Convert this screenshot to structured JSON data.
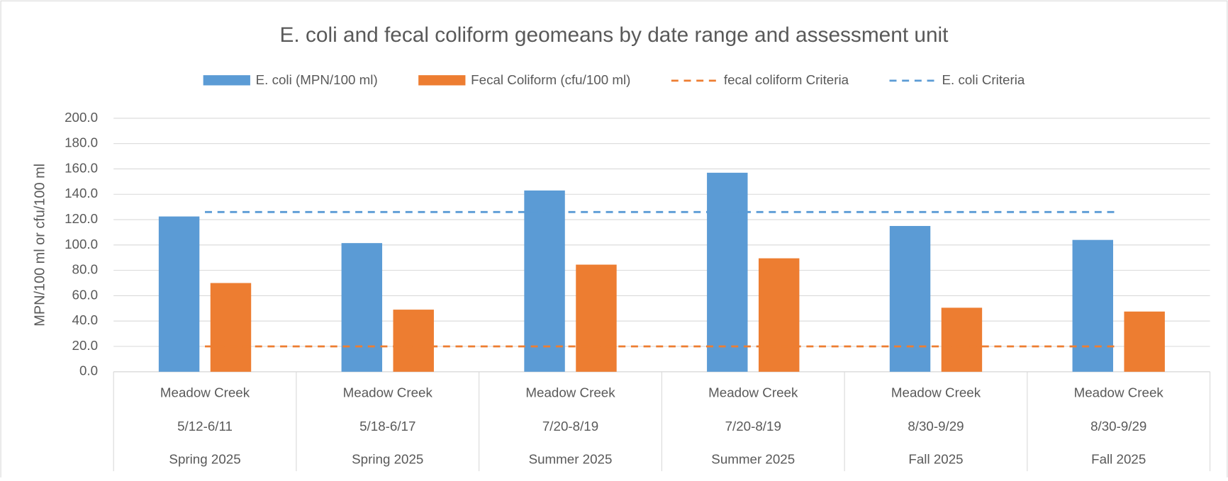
{
  "chart_data": {
    "type": "bar",
    "title": "E. coli and fecal coliform geomeans by date range and assessment unit",
    "y_label": "MPN/100 ml or cfu/100 ml",
    "categories": [
      [
        "Meadow Creek",
        "5/12-6/11",
        "Spring 2025"
      ],
      [
        "Meadow Creek",
        "5/18-6/17",
        "Spring 2025"
      ],
      [
        "Meadow Creek",
        "7/20-8/19",
        "Summer 2025"
      ],
      [
        "Meadow Creek",
        "7/20-8/19",
        "Summer 2025"
      ],
      [
        "Meadow Creek",
        "8/30-9/29",
        "Fall 2025"
      ],
      [
        "Meadow Creek",
        "8/30-9/29",
        "Fall 2025"
      ]
    ],
    "series": [
      {
        "name": "E. coli (MPN/100 ml)",
        "type": "bar",
        "color": "#5b9bd5",
        "values": [
          122.5,
          101.5,
          143,
          157,
          115,
          104
        ]
      },
      {
        "name": "Fecal Coliform (cfu/100 ml)",
        "type": "bar",
        "color": "#ed7d31",
        "values": [
          70,
          49,
          84.5,
          89.5,
          50.5,
          47.5
        ]
      },
      {
        "name": "fecal coliform Criteria",
        "type": "line",
        "dashed": true,
        "color": "#ed7d31",
        "values": [
          20,
          20,
          20,
          20,
          20,
          20
        ]
      },
      {
        "name": "E. coli Criteria",
        "type": "line",
        "dashed": true,
        "color": "#5b9bd5",
        "values": [
          126,
          126,
          126,
          126,
          126,
          126
        ]
      }
    ],
    "ylim": [
      0,
      200
    ],
    "yticks": [
      {
        "value": 0,
        "label": "0.0"
      },
      {
        "value": 20,
        "label": "20.0"
      },
      {
        "value": 40,
        "label": "40.0"
      },
      {
        "value": 60,
        "label": "60.0"
      },
      {
        "value": 80,
        "label": "80.0"
      },
      {
        "value": 100,
        "label": "100.0"
      },
      {
        "value": 120,
        "label": "120.0"
      },
      {
        "value": 140,
        "label": "140.0"
      },
      {
        "value": 160,
        "label": "160.0"
      },
      {
        "value": 180,
        "label": "180.0"
      },
      {
        "value": 200,
        "label": "200.0"
      }
    ],
    "grid": true,
    "legend": "top"
  }
}
